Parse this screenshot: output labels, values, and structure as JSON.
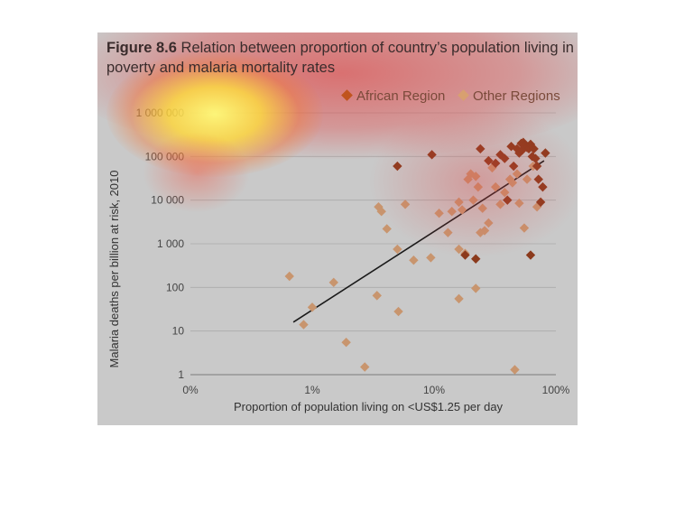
{
  "figure": {
    "number": "Figure 8.6",
    "caption": "Relation between proportion of country’s population living in poverty and malaria mortality rates"
  },
  "colors": {
    "panel_background": "#c9c9c9",
    "african_region": "#8b3a1c",
    "other_regions": "#c8956e",
    "trend_line": "#1a1a1a",
    "gridline": "#aaaaaa"
  },
  "chart_data": {
    "type": "scatter",
    "xlabel": "Proportion of population living on <US$1.25 per day",
    "ylabel": "Malaria deaths per billion at risk, 2010",
    "x_scale": "log",
    "y_scale": "log",
    "x_ticks": [
      {
        "value": 0.1,
        "label": "0%"
      },
      {
        "value": 1,
        "label": "1%"
      },
      {
        "value": 10,
        "label": "10%"
      },
      {
        "value": 100,
        "label": "100%"
      }
    ],
    "y_ticks": [
      {
        "value": 1,
        "label": "1"
      },
      {
        "value": 10,
        "label": "10"
      },
      {
        "value": 100,
        "label": "100"
      },
      {
        "value": 1000,
        "label": "1 000"
      },
      {
        "value": 10000,
        "label": "10 000"
      },
      {
        "value": 100000,
        "label": "100 000"
      },
      {
        "value": 1000000,
        "label": "1 000 000"
      }
    ],
    "grid": "horizontal",
    "legend_position": "top-right",
    "trend_line": {
      "x": [
        0.7,
        80
      ],
      "y": [
        16,
        80000
      ]
    },
    "series": [
      {
        "name": "African Region",
        "points": [
          [
            5,
            60000
          ],
          [
            9.6,
            110000
          ],
          [
            24,
            150000
          ],
          [
            28,
            80000
          ],
          [
            32,
            70000
          ],
          [
            35,
            110000
          ],
          [
            38,
            90000
          ],
          [
            40,
            10000
          ],
          [
            43,
            170000
          ],
          [
            45,
            60000
          ],
          [
            48,
            150000
          ],
          [
            50,
            120000
          ],
          [
            52,
            200000
          ],
          [
            54,
            210000
          ],
          [
            56,
            180000
          ],
          [
            58,
            160000
          ],
          [
            60,
            150000
          ],
          [
            62,
            190000
          ],
          [
            64,
            100000
          ],
          [
            66,
            150000
          ],
          [
            68,
            90000
          ],
          [
            70,
            60000
          ],
          [
            72,
            30000
          ],
          [
            75,
            9000
          ],
          [
            78,
            20000
          ],
          [
            82,
            120000
          ],
          [
            62,
            550
          ],
          [
            22,
            450
          ],
          [
            18,
            550
          ],
          [
            53,
            140000
          ]
        ]
      },
      {
        "name": "Other Regions",
        "points": [
          [
            0.65,
            180
          ],
          [
            0.85,
            14
          ],
          [
            1.0,
            35
          ],
          [
            1.5,
            130
          ],
          [
            1.9,
            5.5
          ],
          [
            2.7,
            1.5
          ],
          [
            3.5,
            7000
          ],
          [
            3.7,
            5500
          ],
          [
            4.1,
            2200
          ],
          [
            3.4,
            65
          ],
          [
            5.1,
            28
          ],
          [
            5.0,
            750
          ],
          [
            5.8,
            8000
          ],
          [
            6.8,
            420
          ],
          [
            9.4,
            480
          ],
          [
            11,
            5000
          ],
          [
            13,
            1800
          ],
          [
            14,
            5500
          ],
          [
            16,
            9000
          ],
          [
            16,
            750
          ],
          [
            16,
            55
          ],
          [
            17,
            6000
          ],
          [
            18,
            600
          ],
          [
            19,
            30000
          ],
          [
            20,
            40000
          ],
          [
            21,
            10000
          ],
          [
            22,
            35000
          ],
          [
            22,
            95
          ],
          [
            23,
            20000
          ],
          [
            25,
            6500
          ],
          [
            26,
            2000
          ],
          [
            28,
            3000
          ],
          [
            30,
            55000
          ],
          [
            32,
            20000
          ],
          [
            35,
            8000
          ],
          [
            38,
            15000
          ],
          [
            42,
            30000
          ],
          [
            46,
            1.3
          ],
          [
            48,
            40000
          ],
          [
            50,
            8500
          ],
          [
            55,
            2300
          ],
          [
            58,
            30000
          ],
          [
            65,
            60000
          ],
          [
            70,
            7000
          ],
          [
            24,
            1800
          ],
          [
            44,
            25000
          ]
        ]
      }
    ]
  }
}
